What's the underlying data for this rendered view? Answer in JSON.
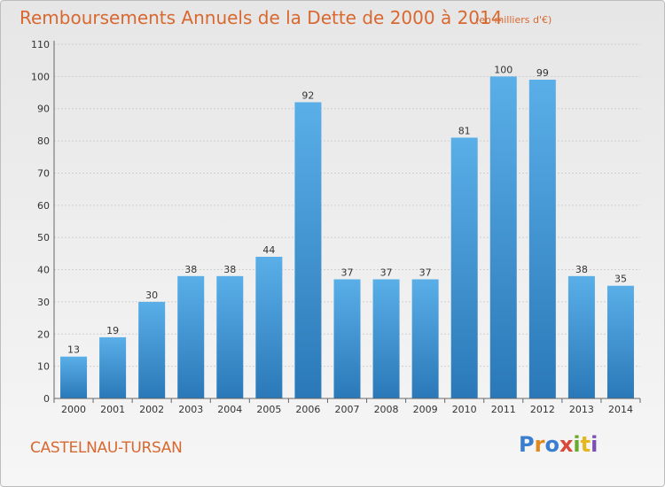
{
  "title": "Remboursements Annuels de la Dette de 2000 à 2014",
  "subtitle": "(en milliers d'€)",
  "city": "CASTELNAU-TURSAN",
  "logo": "Proxiti",
  "colors": {
    "bar_top": "#5aafe8",
    "bar_bottom": "#2a78b8",
    "text_accent": "#d8682f"
  },
  "chart_data": {
    "type": "bar",
    "title": "Remboursements Annuels de la Dette de 2000 à 2014",
    "subtitle": "(en milliers d'€)",
    "categories": [
      "2000",
      "2001",
      "2002",
      "2003",
      "2004",
      "2005",
      "2006",
      "2007",
      "2008",
      "2009",
      "2010",
      "2011",
      "2012",
      "2013",
      "2014"
    ],
    "values": [
      13,
      19,
      30,
      38,
      38,
      44,
      92,
      37,
      37,
      37,
      81,
      100,
      99,
      38,
      35
    ],
    "ylim": [
      0,
      110
    ],
    "yticks": [
      0,
      10,
      20,
      30,
      40,
      50,
      60,
      70,
      80,
      90,
      100,
      110
    ],
    "grid": true,
    "xlabel": "",
    "ylabel": ""
  }
}
